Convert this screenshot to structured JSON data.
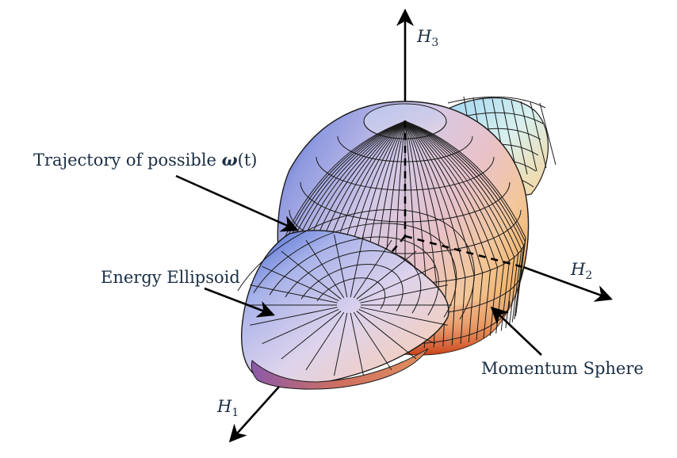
{
  "diagram": {
    "axes": {
      "h3": {
        "letter": "H",
        "subscript": "3"
      },
      "h2": {
        "letter": "H",
        "subscript": "2"
      },
      "h1": {
        "letter": "H",
        "subscript": "1"
      }
    },
    "labels": {
      "trajectory": {
        "text": "Trajectory of possible ",
        "symbol": "ω",
        "suffix": "(t)"
      },
      "energy_ellipsoid": "Energy Ellipsoid",
      "momentum_sphere": "Momentum Sphere"
    },
    "colors": {
      "blue": "#3a55b8",
      "lavender": "#c9c6e6",
      "pink": "#e6bfc6",
      "peach": "#f1c79a",
      "orange_red": "#d24a1c",
      "cyan": "#a9dff0",
      "ink": "#1a2e44"
    }
  }
}
